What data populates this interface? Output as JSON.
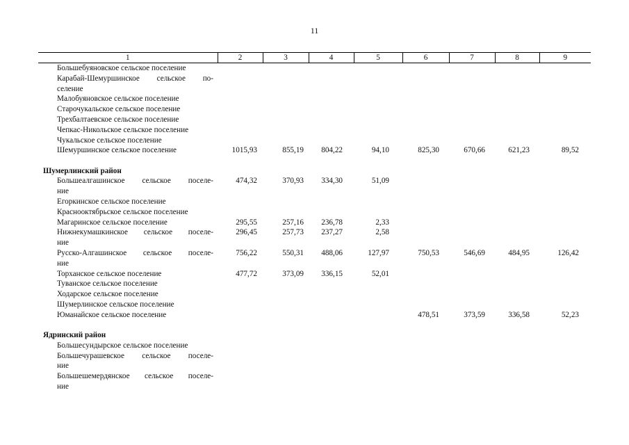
{
  "page_number": "11",
  "columns": [
    "1",
    "2",
    "3",
    "4",
    "5",
    "6",
    "7",
    "8",
    "9"
  ],
  "sections": [
    {
      "district": null,
      "entries": [
        {
          "lines": [
            "Большебуяновское сельское поселение"
          ],
          "values": [
            "",
            "",
            "",
            "",
            "",
            "",
            "",
            ""
          ]
        },
        {
          "lines": [
            "Карабай-Шемуршинское сельское по-",
            "селение"
          ],
          "values": [
            "",
            "",
            "",
            "",
            "",
            "",
            "",
            ""
          ]
        },
        {
          "lines": [
            "Малобуяновское сельское поселение"
          ],
          "values": [
            "",
            "",
            "",
            "",
            "",
            "",
            "",
            ""
          ]
        },
        {
          "lines": [
            "Старочукальское сельское поселение"
          ],
          "values": [
            "",
            "",
            "",
            "",
            "",
            "",
            "",
            ""
          ]
        },
        {
          "lines": [
            "Трехбалтаевское сельское поселение"
          ],
          "values": [
            "",
            "",
            "",
            "",
            "",
            "",
            "",
            ""
          ]
        },
        {
          "lines": [
            "Чепкас-Никольское сельское поселение"
          ],
          "values": [
            "",
            "",
            "",
            "",
            "",
            "",
            "",
            ""
          ]
        },
        {
          "lines": [
            "Чукальское сельское поселение"
          ],
          "values": [
            "",
            "",
            "",
            "",
            "",
            "",
            "",
            ""
          ]
        },
        {
          "lines": [
            "Шемуршинское сельское поселение"
          ],
          "values": [
            "1015,93",
            "855,19",
            "804,22",
            "94,10",
            "825,30",
            "670,66",
            "621,23",
            "89,52"
          ]
        }
      ]
    },
    {
      "district": "Шумерлинский район",
      "entries": [
        {
          "lines": [
            "Большеалгашинское сельское поселе-",
            "ние"
          ],
          "values": [
            "474,32",
            "370,93",
            "334,30",
            "51,09",
            "",
            "",
            "",
            ""
          ]
        },
        {
          "lines": [
            "Егоркинское сельское поселение"
          ],
          "values": [
            "",
            "",
            "",
            "",
            "",
            "",
            "",
            ""
          ]
        },
        {
          "lines": [
            "Краснооктябрьское сельское поселение"
          ],
          "values": [
            "",
            "",
            "",
            "",
            "",
            "",
            "",
            ""
          ]
        },
        {
          "lines": [
            "Магаринское сельское поселение"
          ],
          "values": [
            "295,55",
            "257,16",
            "236,78",
            "2,33",
            "",
            "",
            "",
            ""
          ]
        },
        {
          "lines": [
            "Нижнекумашкинское сельское поселе-",
            "ние"
          ],
          "values": [
            "296,45",
            "257,73",
            "237,27",
            "2,58",
            "",
            "",
            "",
            ""
          ]
        },
        {
          "lines": [
            "Русско-Алгашинское сельское поселе-",
            "ние"
          ],
          "values": [
            "756,22",
            "550,31",
            "488,06",
            "127,97",
            "750,53",
            "546,69",
            "484,95",
            "126,42"
          ]
        },
        {
          "lines": [
            "Торханское сельское поселение"
          ],
          "values": [
            "477,72",
            "373,09",
            "336,15",
            "52,01",
            "",
            "",
            "",
            ""
          ]
        },
        {
          "lines": [
            "Туванское сельское поселение"
          ],
          "values": [
            "",
            "",
            "",
            "",
            "",
            "",
            "",
            ""
          ]
        },
        {
          "lines": [
            "Ходарское сельское поселение"
          ],
          "values": [
            "",
            "",
            "",
            "",
            "",
            "",
            "",
            ""
          ]
        },
        {
          "lines": [
            "Шумерлинское сельское поселение"
          ],
          "values": [
            "",
            "",
            "",
            "",
            "",
            "",
            "",
            ""
          ]
        },
        {
          "lines": [
            "Юманайское сельское поселение"
          ],
          "values": [
            "",
            "",
            "",
            "",
            "478,51",
            "373,59",
            "336,58",
            "52,23"
          ]
        }
      ]
    },
    {
      "district": "Ядринский район",
      "entries": [
        {
          "lines": [
            "Большесундырское сельское поселение"
          ],
          "values": [
            "",
            "",
            "",
            "",
            "",
            "",
            "",
            ""
          ]
        },
        {
          "lines": [
            "Большечурашевское сельское поселе-",
            "ние"
          ],
          "values": [
            "",
            "",
            "",
            "",
            "",
            "",
            "",
            ""
          ]
        },
        {
          "lines": [
            "Большешемердянское сельское поселе-",
            "ние"
          ],
          "values": [
            "",
            "",
            "",
            "",
            "",
            "",
            "",
            ""
          ]
        }
      ]
    }
  ]
}
